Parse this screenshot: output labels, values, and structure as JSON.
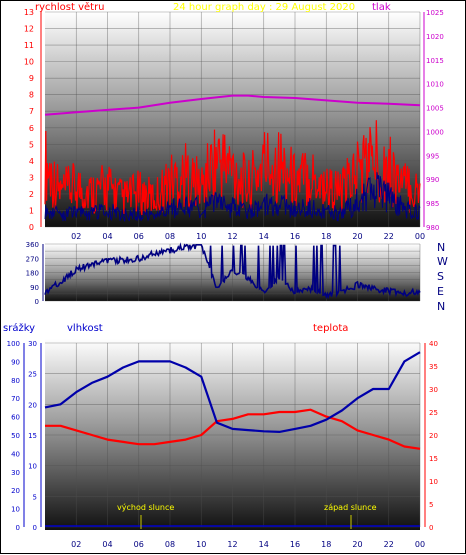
{
  "header": {
    "wind_label": "rychlost větru",
    "title": "24 hour graph day : 29 August 2020",
    "pressure_label": "tlak"
  },
  "direction_labels": [
    "N",
    "W",
    "S",
    "E",
    "N"
  ],
  "lower_header": {
    "rain_label": "srážky",
    "humidity_label": "vlhkost",
    "temperature_label": "teplota"
  },
  "annotations": {
    "sunrise": "východ slunce",
    "sunset": "západ slunce"
  },
  "colors": {
    "wind": "#ff0000",
    "pressure": "#cc00cc",
    "direction": "#000080",
    "humidity": "#0000aa",
    "temperature": "#ff0000",
    "axis_blue": "#0000cc",
    "sun_text": "#ffff00",
    "title": "#ffff00"
  },
  "chart_data": [
    {
      "type": "line",
      "name": "wind-pressure",
      "x_ticks": [
        "02",
        "04",
        "06",
        "08",
        "10",
        "12",
        "14",
        "16",
        "18",
        "20",
        "22",
        "00"
      ],
      "left_axis": {
        "label": "rychlost větru",
        "ylim": [
          0,
          13
        ],
        "ticks": [
          0,
          1,
          2,
          3,
          4,
          5,
          6,
          7,
          8,
          9,
          10,
          11,
          12,
          13
        ]
      },
      "right_axis": {
        "label": "tlak",
        "ylim": [
          980,
          1025
        ],
        "ticks": [
          980,
          985,
          990,
          995,
          1000,
          1005,
          1010,
          1015,
          1020,
          1025
        ]
      },
      "series": [
        {
          "name": "rychlost větru",
          "axis": "left",
          "x": [
            0,
            1,
            2,
            3,
            4,
            5,
            6,
            7,
            8,
            9,
            10,
            11,
            12,
            13,
            14,
            15,
            16,
            17,
            18,
            19,
            20,
            21,
            22,
            23,
            24
          ],
          "gust": [
            5.5,
            3.0,
            3.5,
            3.0,
            3.5,
            2.5,
            3.0,
            2.5,
            4.0,
            4.5,
            3.5,
            6.0,
            5.0,
            3.5,
            5.5,
            5.5,
            4.0,
            4.5,
            3.5,
            3.0,
            5.0,
            6.0,
            5.0,
            3.5,
            3.0
          ],
          "avg": [
            1.2,
            0.8,
            1.0,
            0.9,
            1.1,
            0.8,
            0.9,
            0.7,
            1.2,
            1.5,
            1.2,
            1.5,
            1.3,
            1.0,
            1.6,
            1.5,
            1.2,
            1.3,
            1.0,
            0.9,
            1.8,
            2.5,
            2.0,
            1.2,
            1.0
          ]
        },
        {
          "name": "tlak",
          "axis": "right",
          "x": [
            0,
            2,
            4,
            6,
            8,
            10,
            12,
            13,
            14,
            16,
            18,
            20,
            22,
            24
          ],
          "values": [
            1003.5,
            1004.0,
            1004.5,
            1005.0,
            1006.0,
            1006.8,
            1007.5,
            1007.5,
            1007.2,
            1007.0,
            1006.5,
            1006.0,
            1005.8,
            1005.5
          ]
        }
      ]
    },
    {
      "type": "line",
      "name": "wind-direction",
      "x_ticks": [
        "02",
        "04",
        "06",
        "08",
        "10",
        "12",
        "14",
        "16",
        "18",
        "20",
        "22",
        "00"
      ],
      "y_axis": {
        "ylim": [
          0,
          360
        ],
        "ticks": [
          0,
          45,
          90,
          135,
          180,
          225,
          270,
          315,
          360
        ]
      },
      "series": [
        {
          "name": "směr větru",
          "x": [
            0,
            1,
            2,
            3,
            4,
            5,
            6,
            7,
            8,
            9,
            10,
            11,
            12,
            13,
            14,
            15,
            16,
            17,
            18,
            19,
            20,
            21,
            22,
            23,
            24
          ],
          "values": [
            60,
            120,
            200,
            230,
            250,
            260,
            270,
            300,
            320,
            340,
            350,
            80,
            200,
            150,
            60,
            150,
            60,
            80,
            40,
            60,
            100,
            80,
            60,
            50,
            60
          ]
        }
      ]
    },
    {
      "type": "line",
      "name": "humidity-temperature-rain",
      "x_ticks": [
        "02",
        "04",
        "06",
        "08",
        "10",
        "12",
        "14",
        "16",
        "18",
        "20",
        "22",
        "00"
      ],
      "rain_axis": {
        "label": "srážky",
        "ticks": [
          0,
          10,
          20,
          30,
          40,
          50,
          60,
          70,
          80,
          90,
          100
        ]
      },
      "humidity_axis": {
        "label": "vlhkost",
        "ylim": [
          0,
          30
        ],
        "ticks": [
          0,
          5,
          10,
          15,
          20,
          25,
          30
        ]
      },
      "temperature_axis": {
        "label": "teplota",
        "ylim": [
          0,
          40
        ],
        "ticks": [
          0,
          5,
          10,
          15,
          20,
          25,
          30,
          35,
          40
        ]
      },
      "series": [
        {
          "name": "vlhkost",
          "axis": "humidity",
          "x": [
            0,
            1,
            2,
            3,
            4,
            5,
            6,
            7,
            8,
            9,
            10,
            11,
            12,
            13,
            14,
            15,
            16,
            17,
            18,
            19,
            20,
            21,
            22,
            23,
            24
          ],
          "values": [
            19.5,
            20.0,
            22.0,
            23.5,
            24.5,
            26.0,
            27.0,
            27.0,
            27.0,
            26.0,
            24.5,
            17.0,
            16.0,
            15.8,
            15.6,
            15.5,
            16.0,
            16.5,
            17.5,
            19.0,
            21.0,
            22.5,
            22.5,
            27.0,
            28.5
          ]
        },
        {
          "name": "teplota",
          "axis": "temperature",
          "x": [
            0,
            1,
            2,
            3,
            4,
            5,
            6,
            7,
            8,
            9,
            10,
            11,
            12,
            13,
            14,
            15,
            16,
            17,
            18,
            19,
            20,
            21,
            22,
            23,
            24
          ],
          "values": [
            22.0,
            22.0,
            21.0,
            20.0,
            19.0,
            18.5,
            18.0,
            18.0,
            18.5,
            19.0,
            20.0,
            23.0,
            23.5,
            24.5,
            24.5,
            25.0,
            25.0,
            25.5,
            24.0,
            23.0,
            21.0,
            20.0,
            19.0,
            17.5,
            17.0
          ]
        },
        {
          "name": "srážky",
          "axis": "rain",
          "x": [
            0,
            24
          ],
          "values": [
            0,
            0
          ]
        }
      ],
      "annotations": [
        {
          "text": "východ slunce",
          "x": 6.0
        },
        {
          "text": "západ slunce",
          "x": 19.6
        }
      ]
    }
  ]
}
